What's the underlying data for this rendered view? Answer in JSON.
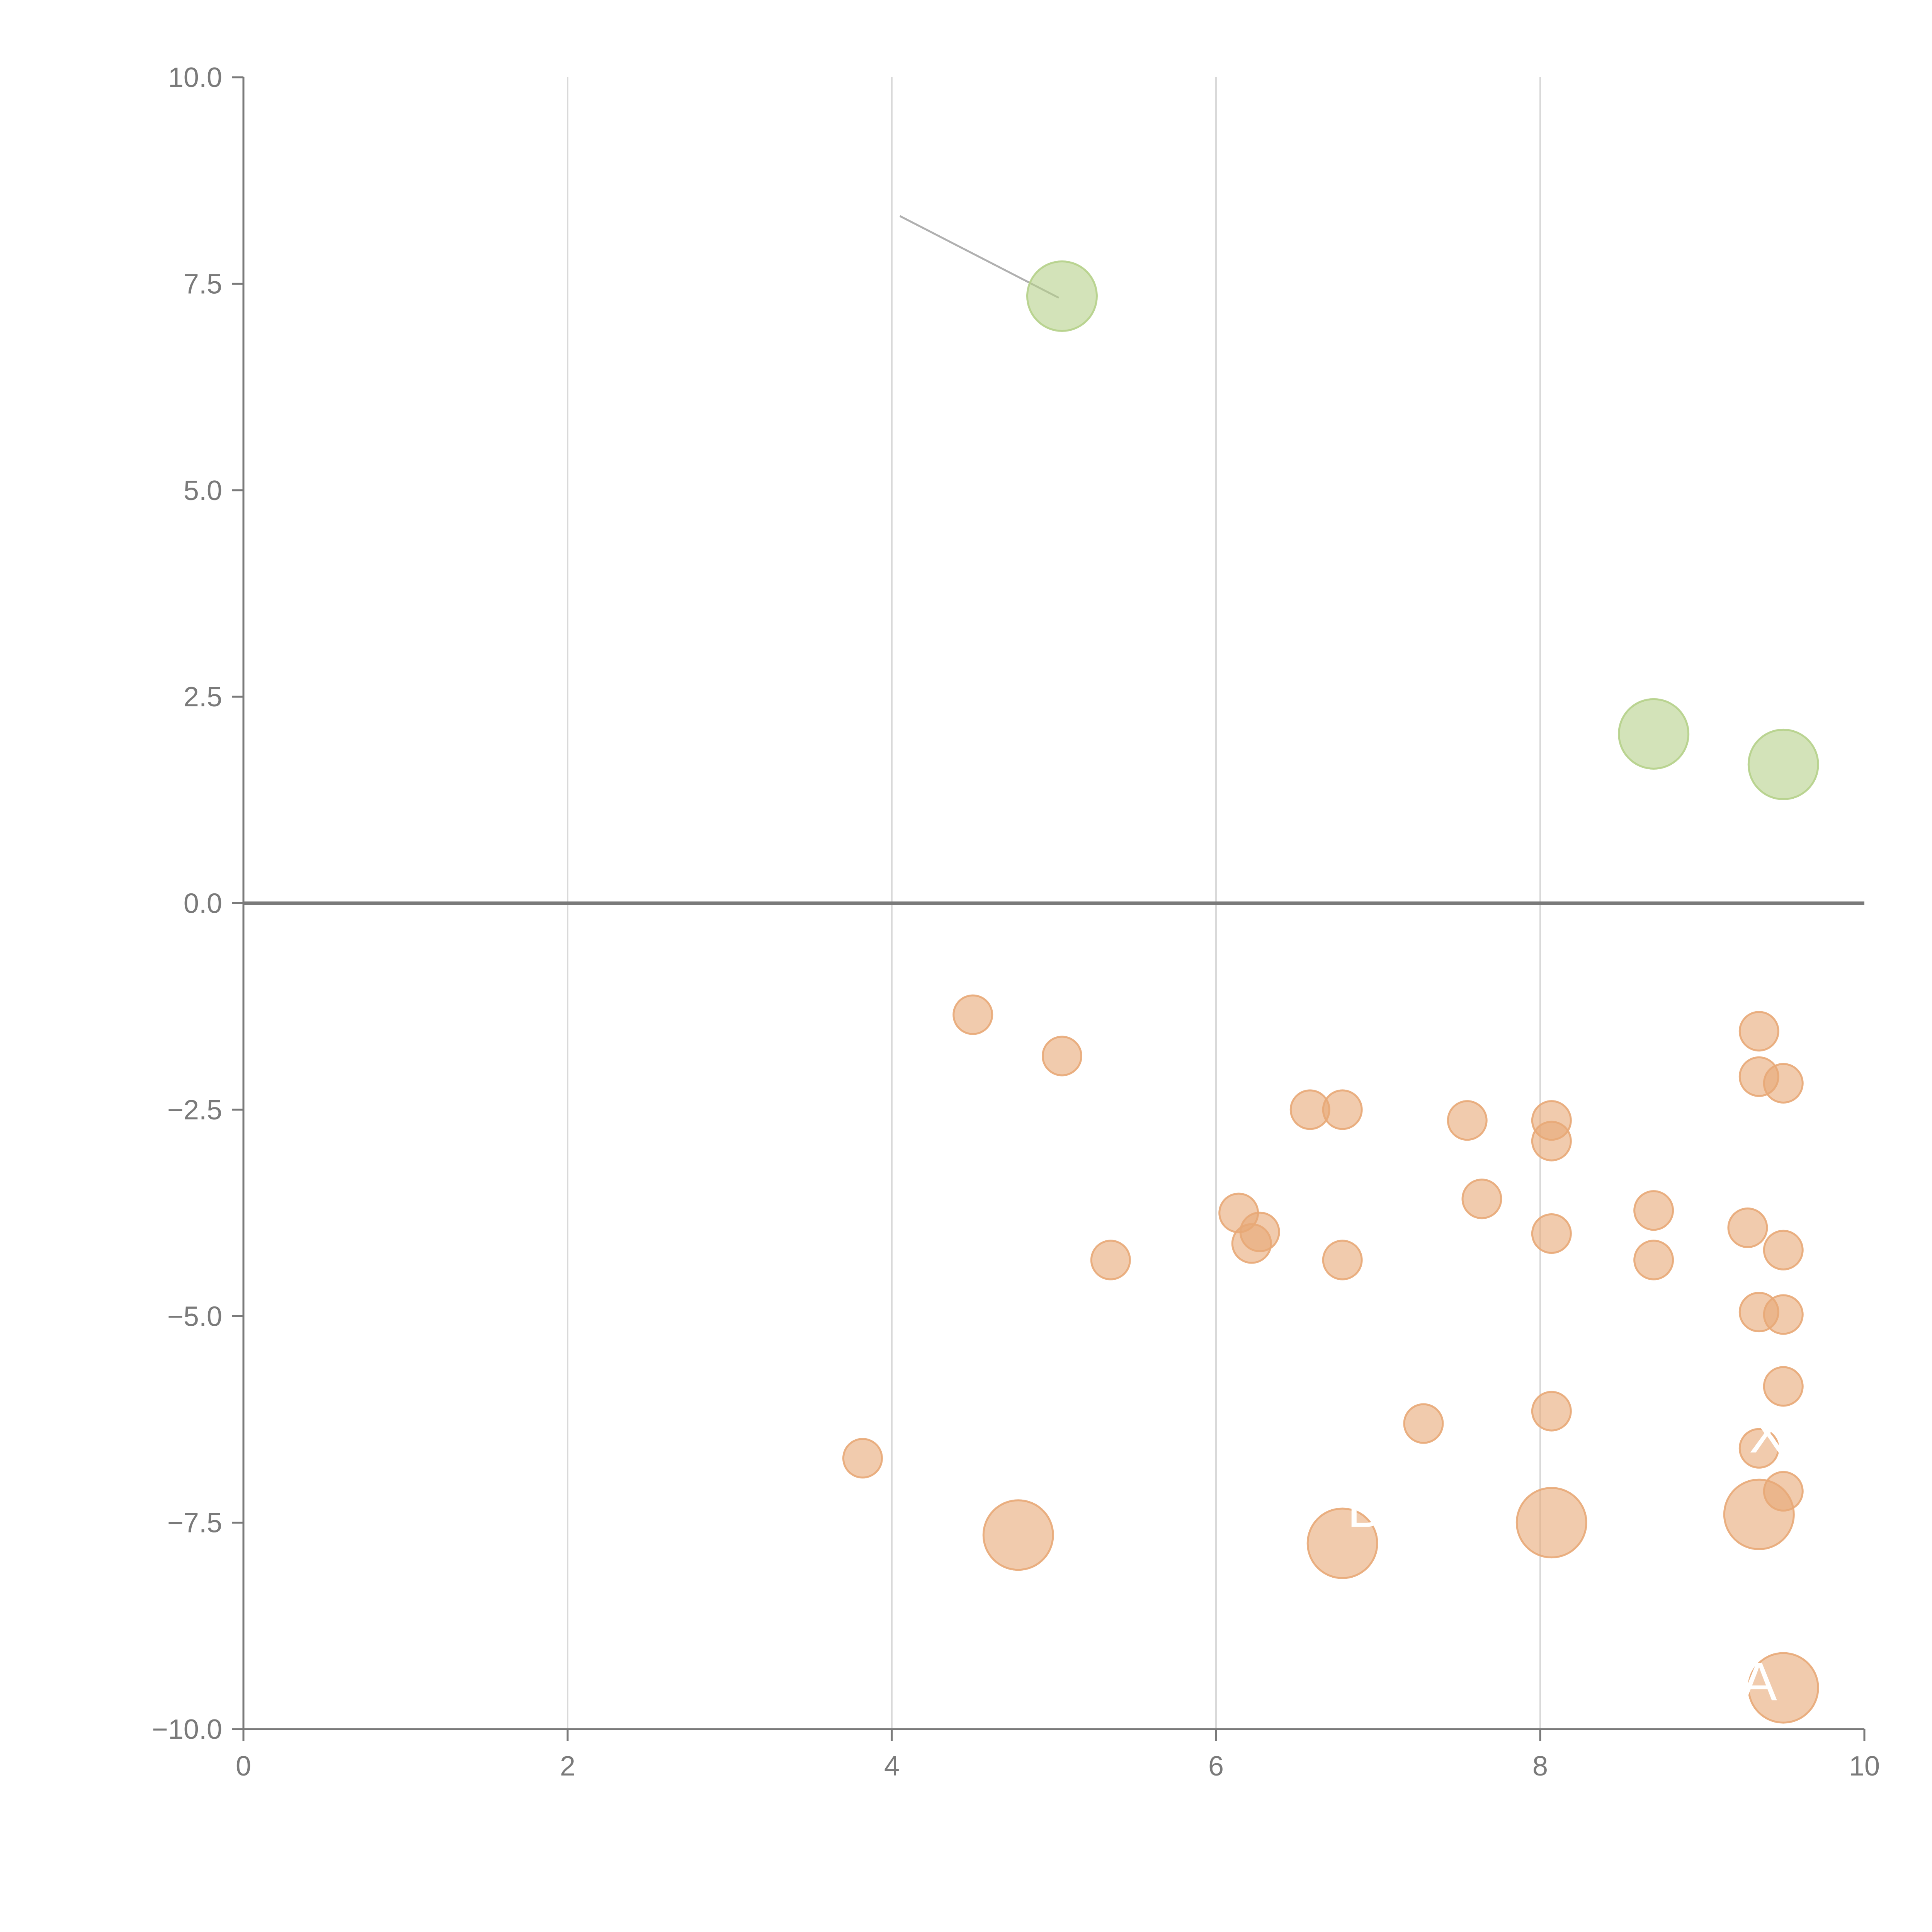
{
  "chart_data": {
    "type": "scatter",
    "title": "",
    "xlabel": "",
    "ylabel": "",
    "xlim": [
      0,
      10
    ],
    "ylim": [
      -10,
      10
    ],
    "x_ticks": [
      "0",
      "2",
      "4",
      "6",
      "8",
      "10"
    ],
    "y_ticks": [
      "10.0",
      "7.5",
      "5.0",
      "2.5",
      "0.0",
      "−2.5",
      "−5.0",
      "−7.5",
      "−10.0"
    ],
    "vertical_grid_at": [
      2,
      4,
      6,
      8
    ],
    "zero_line": 0,
    "colors": {
      "positive": "#b5d08a",
      "negative": "#e8a877",
      "axis": "#7a7a7a",
      "grid": "#d9d9d9",
      "leader": "#b0b0b0"
    },
    "series": [
      {
        "name": "positive",
        "points": [
          {
            "x": 5.05,
            "y": 7.35,
            "size": "large"
          },
          {
            "x": 8.7,
            "y": 2.05,
            "size": "large"
          },
          {
            "x": 9.5,
            "y": 1.68,
            "size": "large"
          }
        ]
      },
      {
        "name": "negative",
        "points": [
          {
            "x": 4.5,
            "y": -1.35,
            "size": "small"
          },
          {
            "x": 5.05,
            "y": -1.85,
            "size": "small"
          },
          {
            "x": 6.58,
            "y": -2.5,
            "size": "small"
          },
          {
            "x": 6.78,
            "y": -2.5,
            "size": "small"
          },
          {
            "x": 7.55,
            "y": -2.63,
            "size": "small"
          },
          {
            "x": 8.07,
            "y": -2.63,
            "size": "small"
          },
          {
            "x": 8.07,
            "y": -2.88,
            "size": "small"
          },
          {
            "x": 9.35,
            "y": -1.55,
            "size": "small"
          },
          {
            "x": 9.35,
            "y": -2.1,
            "size": "small"
          },
          {
            "x": 9.5,
            "y": -2.18,
            "size": "small"
          },
          {
            "x": 6.14,
            "y": -3.75,
            "size": "small"
          },
          {
            "x": 6.27,
            "y": -3.98,
            "size": "small"
          },
          {
            "x": 6.22,
            "y": -4.12,
            "size": "small"
          },
          {
            "x": 7.64,
            "y": -3.58,
            "size": "small"
          },
          {
            "x": 8.7,
            "y": -3.72,
            "size": "small"
          },
          {
            "x": 8.07,
            "y": -4.0,
            "size": "small"
          },
          {
            "x": 9.28,
            "y": -3.93,
            "size": "small"
          },
          {
            "x": 9.5,
            "y": -4.2,
            "size": "small"
          },
          {
            "x": 5.35,
            "y": -4.32,
            "size": "small"
          },
          {
            "x": 6.78,
            "y": -4.32,
            "size": "small"
          },
          {
            "x": 8.7,
            "y": -4.32,
            "size": "small"
          },
          {
            "x": 9.35,
            "y": -4.95,
            "size": "small"
          },
          {
            "x": 9.5,
            "y": -4.98,
            "size": "small"
          },
          {
            "x": 9.5,
            "y": -5.85,
            "size": "small"
          },
          {
            "x": 8.07,
            "y": -6.15,
            "size": "small"
          },
          {
            "x": 7.28,
            "y": -6.3,
            "size": "small"
          },
          {
            "x": 3.82,
            "y": -6.72,
            "size": "small"
          },
          {
            "x": 9.35,
            "y": -6.6,
            "size": "small"
          },
          {
            "x": 9.5,
            "y": -7.12,
            "size": "small"
          },
          {
            "x": 4.78,
            "y": -7.65,
            "size": "large"
          },
          {
            "x": 6.78,
            "y": -7.75,
            "size": "large"
          },
          {
            "x": 8.07,
            "y": -7.5,
            "size": "large"
          },
          {
            "x": 9.35,
            "y": -7.4,
            "size": "large"
          },
          {
            "x": 9.5,
            "y": -9.5,
            "size": "large"
          }
        ]
      }
    ],
    "annotations": [
      {
        "text": "B",
        "x": 6.92,
        "y": -7.55
      },
      {
        "text": "A",
        "x": 9.35,
        "y": -9.65
      },
      {
        "text": "X",
        "x": 9.4,
        "y": -6.65
      }
    ]
  }
}
